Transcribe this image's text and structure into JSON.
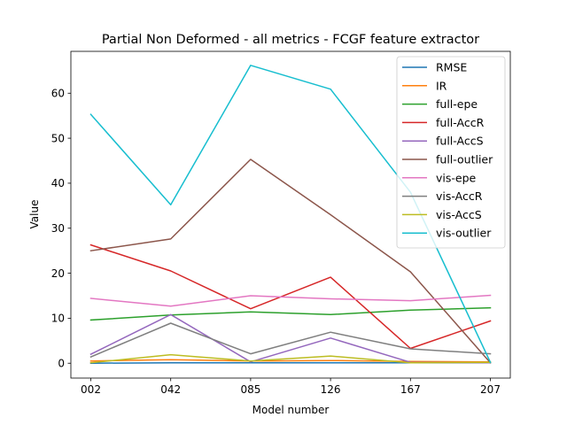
{
  "chart_data": {
    "type": "line",
    "title": "Partial Non Deformed - all metrics - FCGF feature extractor",
    "xlabel": "Model number",
    "ylabel": "Value",
    "categories": [
      "002",
      "042",
      "085",
      "126",
      "167",
      "207"
    ],
    "ylim": [
      -3.3,
      69.3
    ],
    "yticks": [
      0,
      10,
      20,
      30,
      40,
      50,
      60
    ],
    "grid": false,
    "legend_position": "top-right",
    "series": [
      {
        "name": "RMSE",
        "color": "#1f77b4",
        "values": [
          0.0,
          0.1,
          0.1,
          0.1,
          0.1,
          0.1
        ]
      },
      {
        "name": "IR",
        "color": "#ff7f0e",
        "values": [
          0.5,
          0.8,
          0.5,
          0.6,
          0.4,
          0.3
        ]
      },
      {
        "name": "full-epe",
        "color": "#2ca02c",
        "values": [
          9.6,
          10.7,
          11.4,
          10.8,
          11.8,
          12.3
        ]
      },
      {
        "name": "full-AccR",
        "color": "#d62728",
        "values": [
          26.3,
          20.5,
          12.1,
          19.1,
          3.3,
          9.4
        ]
      },
      {
        "name": "full-AccS",
        "color": "#9467bd",
        "values": [
          2.0,
          10.8,
          0.3,
          5.6,
          0.2,
          0.1
        ]
      },
      {
        "name": "full-outlier",
        "color": "#8c564b",
        "values": [
          25.0,
          27.6,
          45.3,
          33.0,
          20.3,
          0.1
        ]
      },
      {
        "name": "vis-epe",
        "color": "#e377c2",
        "values": [
          14.4,
          12.7,
          15.0,
          14.3,
          13.9,
          15.1
        ]
      },
      {
        "name": "vis-AccR",
        "color": "#7f7f7f",
        "values": [
          1.4,
          8.9,
          2.1,
          6.9,
          3.2,
          2.1
        ]
      },
      {
        "name": "vis-AccS",
        "color": "#bcbd22",
        "values": [
          0.1,
          1.9,
          0.5,
          1.6,
          0.1,
          0.2
        ]
      },
      {
        "name": "vis-outlier",
        "color": "#17becf",
        "values": [
          55.3,
          35.2,
          66.2,
          60.9,
          38.0,
          0.2
        ]
      }
    ]
  }
}
